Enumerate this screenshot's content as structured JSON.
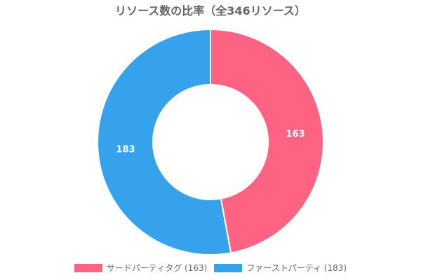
{
  "chart_data": {
    "type": "pie",
    "variant": "donut",
    "title": "リソース数の比率（全346リソース）",
    "total": 346,
    "categories": [
      "サードパーティタグ",
      "ファーストパーティ"
    ],
    "values": [
      163,
      183
    ],
    "colors": [
      "#ff6384",
      "#36a2eb"
    ],
    "legend_labels": [
      "サードパーティタグ (163)",
      "ファーストパーティ (183)"
    ],
    "data_labels": [
      "163",
      "183"
    ],
    "legend_position": "bottom"
  }
}
